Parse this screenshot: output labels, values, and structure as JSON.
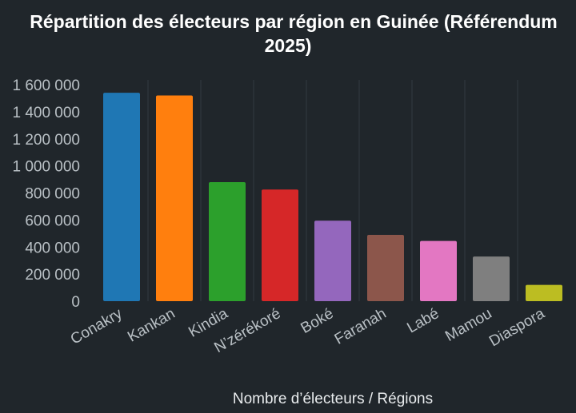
{
  "chart_data": {
    "type": "bar",
    "title_lines": [
      "Répartition des électeurs par région en Guinée (Référendum",
      "2025)"
    ],
    "xlabel": "Nombre d’électeurs / Régions",
    "ylabel": "",
    "ylim": [
      0,
      1600000
    ],
    "yticks": [
      0,
      200000,
      400000,
      600000,
      800000,
      1000000,
      1200000,
      1400000,
      1600000
    ],
    "ytick_labels": [
      "0",
      "200 000",
      "400 000",
      "600 000",
      "800 000",
      "1 000 000",
      "1 200 000",
      "1 400 000",
      "1 600 000"
    ],
    "categories": [
      "Conakry",
      "Kankan",
      "Kindia",
      "N’zérékoré",
      "Boké",
      "Faranah",
      "Labé",
      "Mamou",
      "Diaspora"
    ],
    "values": [
      1540000,
      1520000,
      880000,
      825000,
      595000,
      490000,
      445000,
      330000,
      120000
    ],
    "colors": [
      "#1f77b4",
      "#ff7f0e",
      "#2ca02c",
      "#d62728",
      "#9467bd",
      "#8c564b",
      "#e377c2",
      "#7f7f7f",
      "#bcbd22"
    ],
    "grid": "vertical",
    "legend": "none"
  }
}
